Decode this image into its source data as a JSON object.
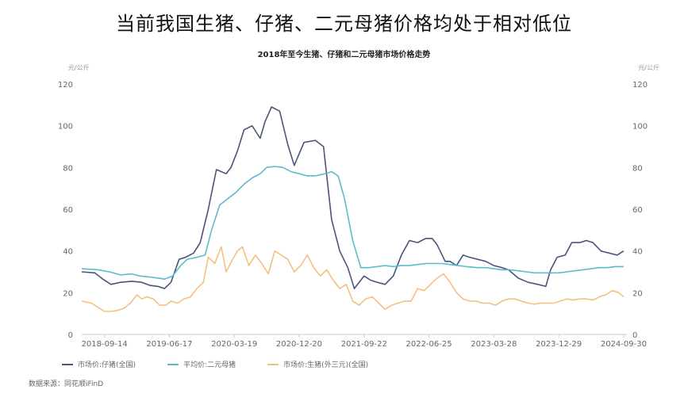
{
  "headline": "当前我国生猪、仔猪、二元母猪价格均处于相对低位",
  "source": "数据来源：同花顺iFinD",
  "chart_data": {
    "type": "line",
    "title": "2018年至今生猪、仔猪和二元母猪市场价格走势",
    "left_unit": "元/公斤",
    "right_unit": "元/公斤",
    "x_ticks": [
      "2018-09-14",
      "2019-06-17",
      "2020-03-19",
      "2020-12-20",
      "2021-09-22",
      "2022-06-25",
      "2023-03-28",
      "2023-12-29",
      "2024-09-30"
    ],
    "x_tick_index": [
      1,
      5,
      9,
      13,
      17,
      21,
      25,
      29,
      33
    ],
    "ylim_left": [
      0,
      120
    ],
    "ylim_right": [
      0,
      120
    ],
    "y_ticks": [
      0,
      20,
      40,
      60,
      80,
      100,
      120
    ],
    "grid": false,
    "legend_position": "bottom-left",
    "series": [
      {
        "name": "市场价:仔猪(全国)",
        "color": "#4a5578",
        "x": [
          -0.4,
          0.4,
          0.9,
          1.4,
          2,
          2.7,
          3.3,
          3.8,
          4.3,
          4.7,
          5.1,
          5.6,
          6,
          6.5,
          6.9,
          7.4,
          7.9,
          8.5,
          8.8,
          9.2,
          9.6,
          10.1,
          10.6,
          10.9,
          11.3,
          11.8,
          12.3,
          12.7,
          13.3,
          14,
          14.5,
          15,
          15.5,
          16,
          16.4,
          16.7,
          17,
          17.4,
          17.8,
          18.3,
          18.8,
          19.3,
          19.8,
          20.3,
          20.8,
          21.2,
          21.5,
          22,
          22.3,
          22.7,
          23.1,
          23.5,
          24,
          24.5,
          25,
          25.5,
          25.9,
          26.5,
          27.1,
          27.7,
          28.2,
          28.5,
          28.9,
          29.4,
          29.8,
          30.3,
          30.7,
          31.1,
          31.6,
          32.1,
          32.6,
          33
        ],
        "values": [
          30,
          29.5,
          26.5,
          24,
          25,
          25.5,
          25,
          23.5,
          23,
          22,
          25,
          36,
          37,
          39,
          44,
          60,
          79,
          77,
          80,
          88,
          98,
          100,
          94,
          102,
          109,
          107,
          91,
          81,
          92,
          93,
          90,
          55,
          40,
          32,
          22,
          25,
          28,
          26,
          25,
          24,
          28,
          38,
          45,
          44,
          46,
          46,
          43,
          35,
          35,
          33,
          38,
          37,
          36,
          35,
          33,
          32,
          31,
          27,
          25,
          24,
          23,
          31,
          37,
          38,
          44,
          44,
          45,
          44,
          40,
          39,
          38,
          40
        ]
      },
      {
        "name": "平均价:二元母猪",
        "color": "#5bbcc9",
        "x": [
          -0.4,
          0.6,
          1.3,
          2,
          2.7,
          3.2,
          3.8,
          4.3,
          4.7,
          5.2,
          5.7,
          6.1,
          6.7,
          7.2,
          7.6,
          8.1,
          8.6,
          9.1,
          9.6,
          10.1,
          10.6,
          11,
          11.5,
          12,
          12.5,
          13,
          13.5,
          14,
          14.6,
          15,
          15.4,
          15.8,
          16.3,
          16.8,
          17.3,
          17.8,
          18.3,
          18.8,
          19.3,
          19.8,
          20.3,
          20.8,
          21.3,
          21.8,
          22.3,
          22.8,
          23.3,
          24,
          24.5,
          25,
          25.5,
          26,
          26.5,
          27,
          27.5,
          28,
          28.5,
          29,
          29.5,
          30,
          30.5,
          31,
          31.5,
          32,
          32.5,
          33
        ],
        "values": [
          31.5,
          31,
          30,
          28.5,
          29,
          28,
          27.5,
          27,
          26.5,
          28,
          33,
          36,
          37,
          38,
          50,
          62,
          65,
          68,
          72,
          75,
          77,
          80,
          80.5,
          80,
          78,
          77,
          76,
          76,
          77,
          78,
          76,
          65,
          45,
          32,
          32,
          32.5,
          33,
          32.5,
          33,
          33,
          33.5,
          34,
          34,
          34,
          33.5,
          33,
          32.5,
          32,
          32,
          31.5,
          31,
          31,
          30.5,
          30,
          29.5,
          29.5,
          29.5,
          29.5,
          30,
          30.5,
          31,
          31.5,
          32,
          32,
          32.5,
          32.5
        ]
      },
      {
        "name": "市场价:生猪(外三元)(全国)",
        "color": "#f3c080",
        "x": [
          -0.4,
          0.2,
          0.6,
          1,
          1.4,
          1.8,
          2.2,
          2.6,
          3,
          3.3,
          3.6,
          4,
          4.4,
          4.8,
          5.1,
          5.5,
          5.9,
          6.3,
          6.7,
          7.1,
          7.4,
          7.8,
          8.2,
          8.5,
          8.9,
          9.2,
          9.5,
          9.9,
          10.3,
          10.7,
          11.1,
          11.5,
          11.9,
          12.3,
          12.7,
          13.1,
          13.5,
          13.9,
          14.3,
          14.7,
          15.1,
          15.5,
          15.9,
          16.3,
          16.7,
          17.1,
          17.5,
          17.9,
          18.3,
          18.7,
          19.1,
          19.5,
          19.9,
          20.3,
          20.7,
          21.1,
          21.5,
          21.9,
          22.3,
          22.7,
          23.1,
          23.5,
          23.9,
          24.3,
          24.7,
          25.1,
          25.5,
          25.9,
          26.3,
          26.7,
          27.1,
          27.5,
          27.9,
          28.3,
          28.7,
          29.1,
          29.5,
          29.9,
          30.3,
          30.7,
          31.1,
          31.5,
          31.9,
          32.3,
          32.7,
          33
        ],
        "values": [
          16,
          15,
          13,
          11,
          11,
          11.5,
          12.5,
          15,
          19,
          17,
          18,
          17,
          14,
          14,
          16,
          15,
          17,
          18,
          22,
          25,
          37,
          34,
          42,
          30,
          36,
          40,
          42,
          33,
          38,
          34,
          29,
          40,
          38,
          36,
          30,
          33,
          38,
          32,
          28,
          31,
          26,
          22,
          24,
          16,
          14,
          17,
          18,
          15,
          12,
          14,
          15,
          16,
          16,
          22,
          21,
          24,
          27,
          29,
          25,
          20,
          17,
          16,
          16,
          15,
          15,
          14,
          16,
          17,
          17,
          16,
          15,
          14.5,
          15,
          15,
          15,
          16,
          17,
          16.5,
          17,
          17,
          16.5,
          18,
          19,
          21,
          20,
          18
        ]
      }
    ]
  }
}
